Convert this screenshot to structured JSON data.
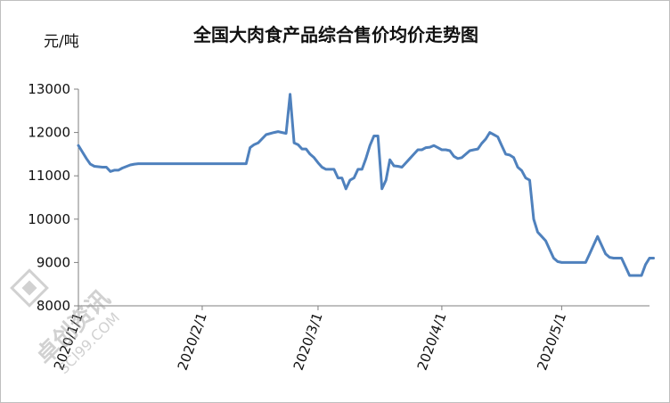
{
  "chart_data": {
    "type": "line",
    "title": "全国大肉食产品综合售价均价走势图",
    "ylabel": "元/吨",
    "ylim": [
      8000,
      13000
    ],
    "yticks": [
      8000,
      9000,
      10000,
      11000,
      12000,
      13000
    ],
    "xticks": [
      {
        "label": "2020/1/1",
        "date": "2020-01-01"
      },
      {
        "label": "2020/2/1",
        "date": "2020-02-01"
      },
      {
        "label": "2020/3/1",
        "date": "2020-03-01"
      },
      {
        "label": "2020/4/1",
        "date": "2020-04-01"
      },
      {
        "label": "2020/5/1",
        "date": "2020-05-01"
      }
    ],
    "xlim": [
      "2020-01-01",
      "2020-05-23"
    ],
    "grid": false,
    "legend": "none",
    "series": [
      {
        "color": "#4f81bd",
        "points": [
          [
            "2020-01-01",
            11700
          ],
          [
            "2020-01-02",
            11550
          ],
          [
            "2020-01-03",
            11400
          ],
          [
            "2020-01-04",
            11270
          ],
          [
            "2020-01-05",
            11220
          ],
          [
            "2020-01-07",
            11200
          ],
          [
            "2020-01-08",
            11200
          ],
          [
            "2020-01-09",
            11100
          ],
          [
            "2020-01-10",
            11130
          ],
          [
            "2020-01-11",
            11130
          ],
          [
            "2020-01-12",
            11180
          ],
          [
            "2020-01-14",
            11250
          ],
          [
            "2020-01-15",
            11270
          ],
          [
            "2020-01-16",
            11280
          ],
          [
            "2020-01-18",
            11280
          ],
          [
            "2020-01-25",
            11280
          ],
          [
            "2020-02-01",
            11280
          ],
          [
            "2020-02-08",
            11280
          ],
          [
            "2020-02-12",
            11280
          ],
          [
            "2020-02-13",
            11650
          ],
          [
            "2020-02-14",
            11720
          ],
          [
            "2020-02-15",
            11760
          ],
          [
            "2020-02-17",
            11950
          ],
          [
            "2020-02-19",
            12000
          ],
          [
            "2020-02-20",
            12020
          ],
          [
            "2020-02-21",
            12000
          ],
          [
            "2020-02-22",
            11980
          ],
          [
            "2020-02-23",
            12880
          ],
          [
            "2020-02-24",
            11760
          ],
          [
            "2020-02-25",
            11720
          ],
          [
            "2020-02-26",
            11620
          ],
          [
            "2020-02-27",
            11620
          ],
          [
            "2020-02-28",
            11500
          ],
          [
            "2020-02-29",
            11420
          ],
          [
            "2020-03-01",
            11300
          ],
          [
            "2020-03-02",
            11200
          ],
          [
            "2020-03-03",
            11150
          ],
          [
            "2020-03-04",
            11150
          ],
          [
            "2020-03-05",
            11150
          ],
          [
            "2020-03-06",
            10950
          ],
          [
            "2020-03-07",
            10950
          ],
          [
            "2020-03-08",
            10700
          ],
          [
            "2020-03-09",
            10900
          ],
          [
            "2020-03-10",
            10950
          ],
          [
            "2020-03-11",
            11150
          ],
          [
            "2020-03-12",
            11150
          ],
          [
            "2020-03-13",
            11400
          ],
          [
            "2020-03-14",
            11700
          ],
          [
            "2020-03-15",
            11920
          ],
          [
            "2020-03-16",
            11920
          ],
          [
            "2020-03-17",
            10700
          ],
          [
            "2020-03-18",
            10900
          ],
          [
            "2020-03-19",
            11370
          ],
          [
            "2020-03-20",
            11230
          ],
          [
            "2020-03-21",
            11220
          ],
          [
            "2020-03-22",
            11200
          ],
          [
            "2020-03-23",
            11300
          ],
          [
            "2020-03-24",
            11400
          ],
          [
            "2020-03-25",
            11500
          ],
          [
            "2020-03-26",
            11600
          ],
          [
            "2020-03-27",
            11600
          ],
          [
            "2020-03-28",
            11650
          ],
          [
            "2020-03-29",
            11660
          ],
          [
            "2020-03-30",
            11700
          ],
          [
            "2020-03-31",
            11650
          ],
          [
            "2020-04-01",
            11600
          ],
          [
            "2020-04-02",
            11600
          ],
          [
            "2020-04-03",
            11580
          ],
          [
            "2020-04-04",
            11450
          ],
          [
            "2020-04-05",
            11400
          ],
          [
            "2020-04-06",
            11420
          ],
          [
            "2020-04-07",
            11500
          ],
          [
            "2020-04-08",
            11580
          ],
          [
            "2020-04-09",
            11600
          ],
          [
            "2020-04-10",
            11620
          ],
          [
            "2020-04-11",
            11750
          ],
          [
            "2020-04-12",
            11850
          ],
          [
            "2020-04-13",
            12000
          ],
          [
            "2020-04-14",
            11950
          ],
          [
            "2020-04-15",
            11900
          ],
          [
            "2020-04-16",
            11700
          ],
          [
            "2020-04-17",
            11500
          ],
          [
            "2020-04-18",
            11480
          ],
          [
            "2020-04-19",
            11420
          ],
          [
            "2020-04-20",
            11200
          ],
          [
            "2020-04-21",
            11120
          ],
          [
            "2020-04-22",
            10950
          ],
          [
            "2020-04-23",
            10900
          ],
          [
            "2020-04-24",
            10000
          ],
          [
            "2020-04-25",
            9700
          ],
          [
            "2020-04-26",
            9600
          ],
          [
            "2020-04-27",
            9500
          ],
          [
            "2020-04-28",
            9300
          ],
          [
            "2020-04-29",
            9100
          ],
          [
            "2020-04-30",
            9020
          ],
          [
            "2020-05-01",
            9000
          ],
          [
            "2020-05-02",
            9000
          ],
          [
            "2020-05-03",
            9000
          ],
          [
            "2020-05-04",
            9000
          ],
          [
            "2020-05-05",
            9000
          ],
          [
            "2020-05-06",
            9000
          ],
          [
            "2020-05-07",
            9000
          ],
          [
            "2020-05-08",
            9200
          ],
          [
            "2020-05-09",
            9400
          ],
          [
            "2020-05-10",
            9600
          ],
          [
            "2020-05-11",
            9400
          ],
          [
            "2020-05-12",
            9200
          ],
          [
            "2020-05-13",
            9120
          ],
          [
            "2020-05-14",
            9100
          ],
          [
            "2020-05-15",
            9100
          ],
          [
            "2020-05-16",
            9100
          ],
          [
            "2020-05-17",
            8900
          ],
          [
            "2020-05-18",
            8700
          ],
          [
            "2020-05-19",
            8700
          ],
          [
            "2020-05-20",
            8700
          ],
          [
            "2020-05-21",
            8700
          ],
          [
            "2020-05-22",
            8950
          ],
          [
            "2020-05-23",
            9100
          ],
          [
            "2020-05-24",
            9100
          ]
        ]
      }
    ]
  },
  "watermark": {
    "logo_icon": "scrap-cube-icon",
    "text": "卓创资讯",
    "domain": "SCI99.COM",
    "color": "#9a9a9a"
  }
}
